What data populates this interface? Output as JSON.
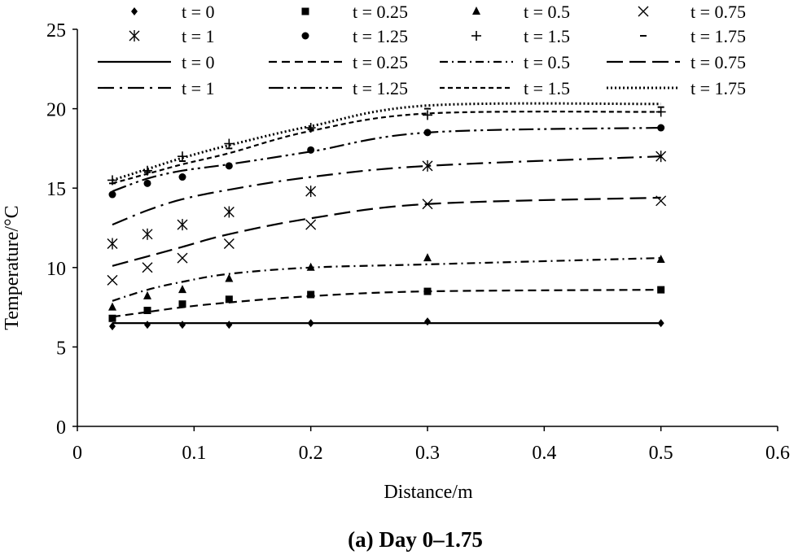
{
  "caption": "(a) Day 0–1.75",
  "chart_data": {
    "type": "scatter",
    "title": "",
    "xlabel": "Distance/m",
    "ylabel": "Temperature/°C",
    "xlim": [
      0,
      0.6
    ],
    "ylim": [
      0,
      25
    ],
    "xticks": [
      0,
      0.1,
      0.2,
      0.3,
      0.4,
      0.5,
      0.6
    ],
    "yticks": [
      0,
      5,
      10,
      15,
      20,
      25
    ],
    "x": [
      0.03,
      0.06,
      0.09,
      0.13,
      0.2,
      0.3,
      0.5
    ],
    "legend_position": "top",
    "measured_series": [
      {
        "name": "t = 0",
        "marker": "diamond",
        "values": [
          6.3,
          6.4,
          6.4,
          6.4,
          6.5,
          6.6,
          6.5
        ]
      },
      {
        "name": "t = 0.25",
        "marker": "square",
        "values": [
          6.8,
          7.3,
          7.7,
          8.0,
          8.3,
          8.5,
          8.6
        ]
      },
      {
        "name": "t = 0.5",
        "marker": "triangle",
        "values": [
          7.5,
          8.2,
          8.6,
          9.3,
          10.0,
          10.6,
          10.5
        ]
      },
      {
        "name": "t = 0.75",
        "marker": "x",
        "values": [
          9.2,
          10.0,
          10.6,
          11.5,
          12.7,
          14.0,
          14.2
        ]
      },
      {
        "name": "t = 1",
        "marker": "asterisk",
        "values": [
          11.5,
          12.1,
          12.7,
          13.5,
          14.8,
          16.4,
          17.0
        ]
      },
      {
        "name": "t = 1.25",
        "marker": "circle",
        "values": [
          14.6,
          15.3,
          15.7,
          16.4,
          17.4,
          18.5,
          18.8
        ]
      },
      {
        "name": "t = 1.5",
        "marker": "plus",
        "values": [
          15.5,
          16.1,
          17.0,
          17.8,
          18.8,
          19.6,
          19.8
        ]
      },
      {
        "name": "t = 1.75",
        "marker": "dash",
        "values": [
          15.3,
          16.0,
          16.7,
          17.5,
          18.7,
          20.0,
          20.1
        ]
      }
    ],
    "model_series": [
      {
        "name": "t = 0",
        "line_style": "solid",
        "values": [
          6.5,
          6.5,
          6.5,
          6.5,
          6.5,
          6.5,
          6.5
        ]
      },
      {
        "name": "t = 0.25",
        "line_style": "dashed",
        "values": [
          6.9,
          7.2,
          7.5,
          7.8,
          8.2,
          8.5,
          8.6
        ]
      },
      {
        "name": "t = 0.5",
        "line_style": "dash-dot",
        "values": [
          7.9,
          8.6,
          9.1,
          9.6,
          10.0,
          10.2,
          10.6
        ]
      },
      {
        "name": "t = 0.75",
        "line_style": "long-dash",
        "values": [
          10.1,
          10.7,
          11.3,
          12.1,
          13.1,
          14.0,
          14.4
        ]
      },
      {
        "name": "t = 1",
        "line_style": "long-dash-dot",
        "values": [
          12.7,
          13.6,
          14.3,
          14.9,
          15.7,
          16.4,
          17.0
        ]
      },
      {
        "name": "t = 1.25",
        "line_style": "long-dash-dot-dot",
        "values": [
          14.8,
          15.6,
          16.1,
          16.5,
          17.3,
          18.5,
          18.8
        ]
      },
      {
        "name": "t = 1.5",
        "line_style": "short-dash",
        "values": [
          15.3,
          15.9,
          16.5,
          17.2,
          18.6,
          19.7,
          19.8
        ]
      },
      {
        "name": "t = 1.75",
        "line_style": "dotted",
        "values": [
          15.5,
          16.2,
          16.9,
          17.7,
          18.9,
          20.2,
          20.3
        ]
      }
    ]
  }
}
